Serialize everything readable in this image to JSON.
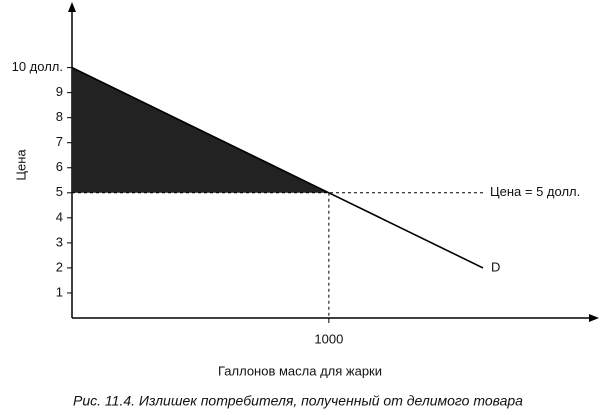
{
  "chart_data": {
    "type": "line",
    "caption": "Рис. 11.4. Излишек потребителя, полученный от делимого товара",
    "xlabel": "Галлонов масла для жарки",
    "ylabel": "Цена",
    "series": [
      {
        "name": "D",
        "color": "#000000",
        "x": [
          0,
          1000,
          1600
        ],
        "values": [
          10,
          5,
          2
        ]
      }
    ],
    "price_line": {
      "value": 5,
      "label": "Цена = 5 долл."
    },
    "surplus_color": "#222222",
    "xlim": [
      0,
      2040
    ],
    "ylim": [
      0,
      12.5
    ],
    "xticks": [
      1000
    ],
    "yticks": [
      1,
      2,
      3,
      4,
      5,
      6,
      7,
      8,
      9,
      {
        "value": 10,
        "label": "10 долл."
      }
    ]
  }
}
